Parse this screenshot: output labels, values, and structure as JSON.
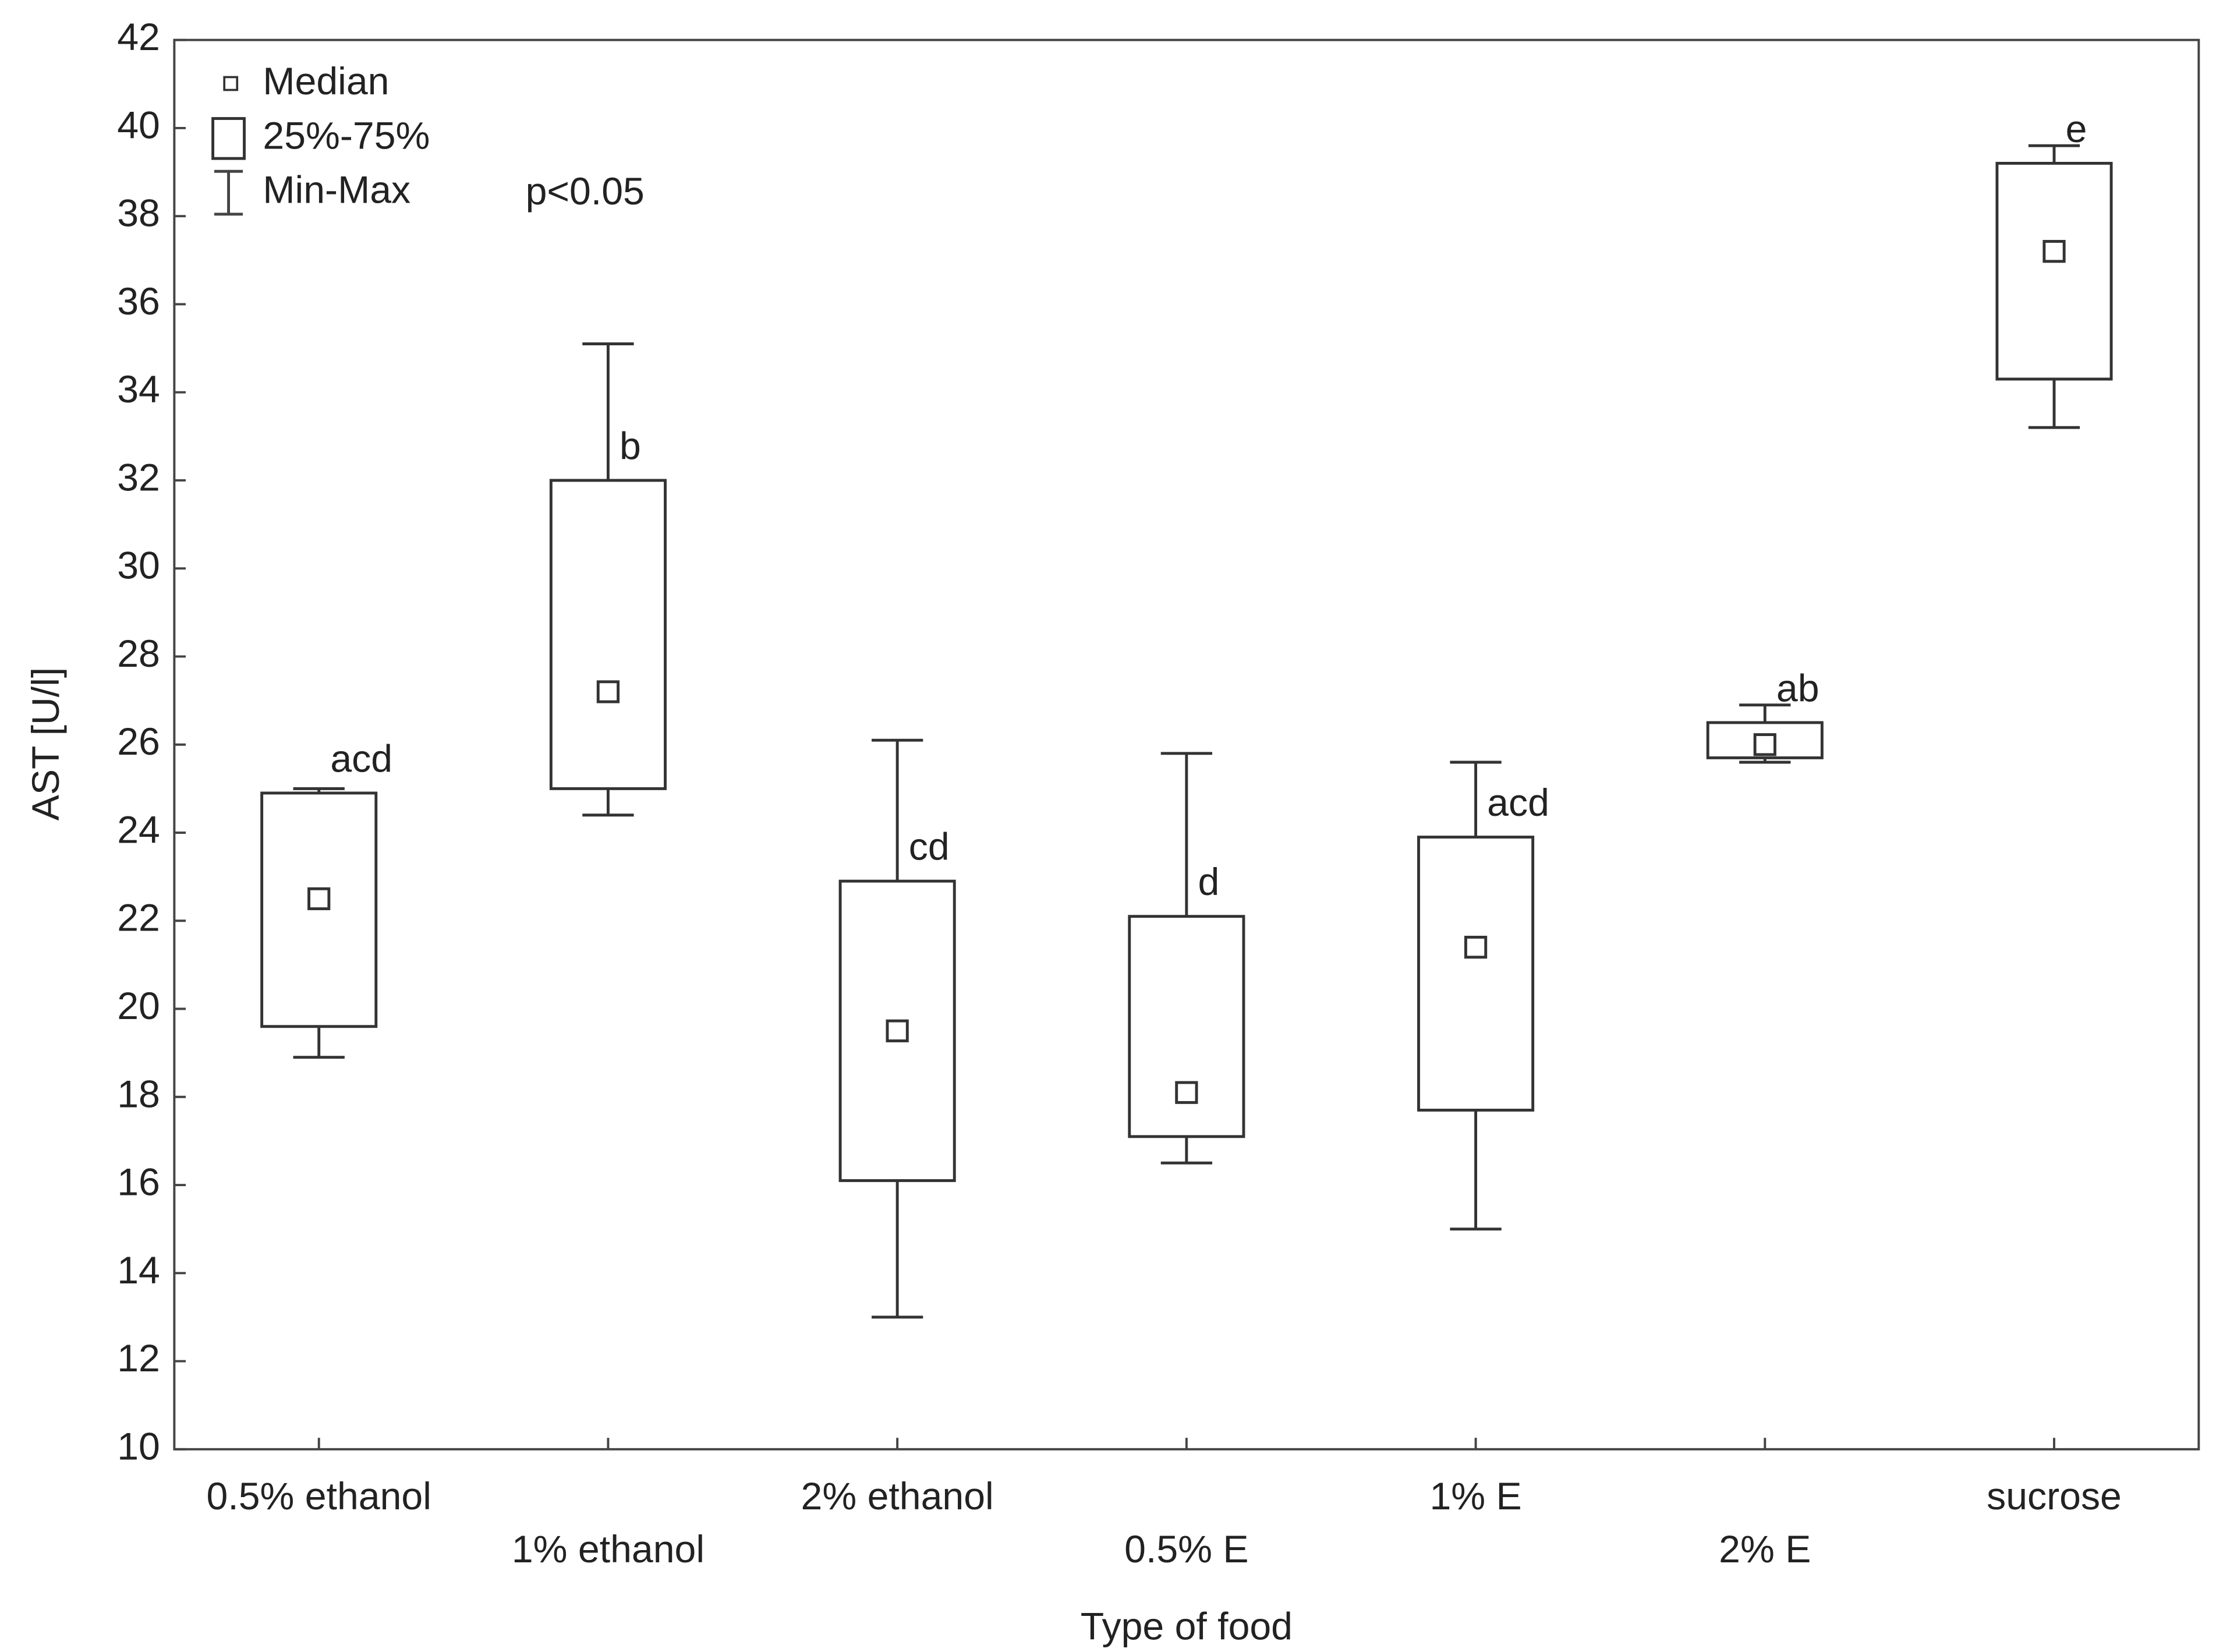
{
  "chart_data": {
    "type": "box",
    "x_label": "Type of food",
    "y_label": "AST [U/l]",
    "annotation": "p<0.05",
    "legend": [
      "Median",
      "25%-75%",
      "Min-Max"
    ],
    "categories": [
      "0.5% ethanol",
      "1% ethanol",
      "2% ethanol",
      "0.5% E",
      "1% E",
      "2% E",
      "sucrose"
    ],
    "min": [
      18.9,
      24.4,
      13.0,
      16.5,
      15.0,
      25.6,
      33.2
    ],
    "q1": [
      19.6,
      25.0,
      16.1,
      17.1,
      17.7,
      25.7,
      34.3
    ],
    "median": [
      22.5,
      27.2,
      19.5,
      18.1,
      21.4,
      26.0,
      37.2
    ],
    "q3": [
      24.9,
      32.0,
      22.9,
      22.1,
      23.9,
      26.5,
      39.2
    ],
    "max": [
      25.0,
      35.1,
      26.1,
      25.8,
      25.6,
      26.9,
      39.6
    ],
    "group_labels": [
      "acd",
      "b",
      "cd",
      "d",
      "acd",
      "ab",
      "e"
    ],
    "ylim": [
      10,
      42
    ],
    "yticks": [
      10,
      12,
      14,
      16,
      18,
      20,
      22,
      24,
      26,
      28,
      30,
      32,
      34,
      36,
      38,
      40,
      42
    ]
  }
}
